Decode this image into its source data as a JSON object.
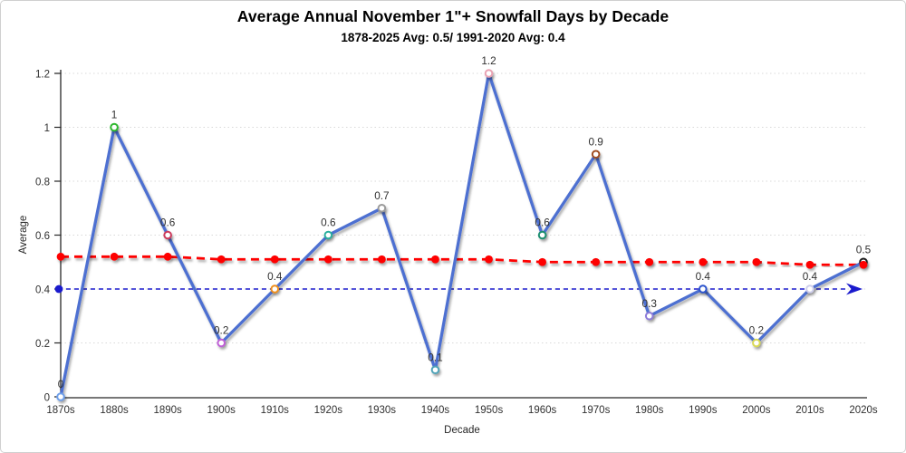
{
  "header": {
    "title": "Average Annual November 1\"+ Snowfall Days by Decade",
    "subtitle": "1878-2025 Avg: 0.5/ 1991-2020 Avg: 0.4"
  },
  "chart_data": {
    "type": "line",
    "title": "Average Annual November 1\"+ Snowfall Days by Decade",
    "subtitle": "1878-2025 Avg: 0.5/ 1991-2020 Avg: 0.4",
    "xlabel": "Decade",
    "ylabel": "Average",
    "categories": [
      "1870s",
      "1880s",
      "1890s",
      "1900s",
      "1910s",
      "1920s",
      "1930s",
      "1940s",
      "1950s",
      "1960s",
      "1970s",
      "1980s",
      "1990s",
      "2000s",
      "2010s",
      "2020s"
    ],
    "ylim": [
      0,
      1.2
    ],
    "yticks": [
      0,
      0.2,
      0.4,
      0.6,
      0.8,
      1,
      1.2
    ],
    "ytick_labels": [
      "0",
      "0.2",
      "0.4",
      "0.6",
      "0.8",
      "1",
      "1.2"
    ],
    "grid": "horizontal-dotted",
    "grid_color": "#d9d9d9",
    "axis_color": "#262626",
    "label_color": "#303030",
    "series": [
      {
        "name": "snowfall-days-by-decade",
        "type": "line-with-markers",
        "color": "#4d6fd1",
        "values": [
          0,
          1,
          0.6,
          0.2,
          0.4,
          0.6,
          0.7,
          0.1,
          1.2,
          0.6,
          0.9,
          0.3,
          0.4,
          0.2,
          0.4,
          0.5
        ],
        "labels": [
          "0",
          "1",
          "0.6",
          "0.2",
          "0.4",
          "0.6",
          "0.7",
          "0.1",
          "1.2",
          "0.6",
          "0.9",
          "0.3",
          "0.4",
          "0.2",
          "0.4",
          "0.5"
        ],
        "marker_fill": "#ffffff",
        "point_colors": [
          "#6d9eea",
          "#2db82d",
          "#cc3a5c",
          "#bf5fd6",
          "#ef8f1f",
          "#2aaf9e",
          "#9b9b9b",
          "#4fa3b8",
          "#e9a2b2",
          "#1f8f70",
          "#a14d21",
          "#8e7cd8",
          "#2b53cc",
          "#d9d955",
          "#cdcdeb",
          "#1a1a1a"
        ]
      },
      {
        "name": "long-term-average-trend",
        "type": "dashed-line-with-dots",
        "color": "#fe0000",
        "values": [
          0.52,
          0.52,
          0.52,
          0.51,
          0.51,
          0.51,
          0.51,
          0.51,
          0.51,
          0.5,
          0.5,
          0.5,
          0.5,
          0.5,
          0.49,
          0.49
        ]
      },
      {
        "name": "1991-2020-normal-reference",
        "type": "dashed-arrow-line",
        "color": "#1a1acd",
        "value": 0.4
      }
    ]
  }
}
